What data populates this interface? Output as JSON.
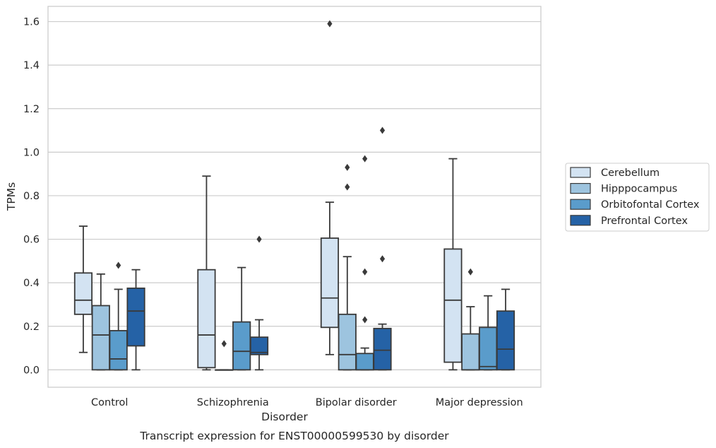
{
  "chart_data": {
    "type": "box",
    "caption": "Transcript expression for ENST00000599530 by disorder",
    "xlabel": "Disorder",
    "ylabel": "TPMs",
    "ylim": [
      -0.08,
      1.67
    ],
    "yticks": [
      "0.0",
      "0.2",
      "0.4",
      "0.6",
      "0.8",
      "1.0",
      "1.2",
      "1.4",
      "1.6"
    ],
    "grid": true,
    "legend_position": "right",
    "categories": [
      "Control",
      "Schizophrenia",
      "Bipolar disorder",
      "Major depression"
    ],
    "series": [
      {
        "name": "Cerebellum",
        "color": "#d3e3f2",
        "boxes": [
          {
            "whisker_low": 0.08,
            "q1": 0.255,
            "median": 0.32,
            "q3": 0.445,
            "whisker_high": 0.66,
            "outliers": []
          },
          {
            "whisker_low": 0.0,
            "q1": 0.01,
            "median": 0.16,
            "q3": 0.46,
            "whisker_high": 0.89,
            "outliers": []
          },
          {
            "whisker_low": 0.07,
            "q1": 0.195,
            "median": 0.33,
            "q3": 0.605,
            "whisker_high": 0.77,
            "outliers": [
              1.59
            ]
          },
          {
            "whisker_low": 0.0,
            "q1": 0.035,
            "median": 0.32,
            "q3": 0.555,
            "whisker_high": 0.97,
            "outliers": []
          }
        ]
      },
      {
        "name": "Hipppocampus",
        "color": "#9dc4df",
        "boxes": [
          {
            "whisker_low": 0.0,
            "q1": 0.0,
            "median": 0.16,
            "q3": 0.295,
            "whisker_high": 0.44,
            "outliers": []
          },
          {
            "whisker_low": 0.0,
            "q1": 0.0,
            "median": 0.0,
            "q3": 0.0,
            "whisker_high": 0.0,
            "outliers": [
              0.12
            ]
          },
          {
            "whisker_low": 0.0,
            "q1": 0.0,
            "median": 0.07,
            "q3": 0.255,
            "whisker_high": 0.52,
            "outliers": [
              0.93,
              0.84
            ]
          },
          {
            "whisker_low": 0.0,
            "q1": 0.0,
            "median": 0.0,
            "q3": 0.165,
            "whisker_high": 0.29,
            "outliers": [
              0.45
            ]
          }
        ]
      },
      {
        "name": "Orbitofontal Cortex",
        "color": "#5a9ccb",
        "boxes": [
          {
            "whisker_low": 0.0,
            "q1": 0.0,
            "median": 0.05,
            "q3": 0.18,
            "whisker_high": 0.37,
            "outliers": [
              0.48
            ]
          },
          {
            "whisker_low": 0.0,
            "q1": 0.0,
            "median": 0.085,
            "q3": 0.22,
            "whisker_high": 0.47,
            "outliers": []
          },
          {
            "whisker_low": 0.0,
            "q1": 0.0,
            "median": 0.0,
            "q3": 0.075,
            "whisker_high": 0.1,
            "outliers": [
              0.97,
              0.45,
              0.23
            ]
          },
          {
            "whisker_low": 0.0,
            "q1": 0.0,
            "median": 0.015,
            "q3": 0.195,
            "whisker_high": 0.34,
            "outliers": []
          }
        ]
      },
      {
        "name": "Prefrontal Cortex",
        "color": "#2562a6",
        "boxes": [
          {
            "whisker_low": 0.0,
            "q1": 0.11,
            "median": 0.27,
            "q3": 0.375,
            "whisker_high": 0.46,
            "outliers": []
          },
          {
            "whisker_low": 0.0,
            "q1": 0.07,
            "median": 0.08,
            "q3": 0.15,
            "whisker_high": 0.23,
            "outliers": [
              0.6
            ]
          },
          {
            "whisker_low": 0.0,
            "q1": 0.0,
            "median": 0.09,
            "q3": 0.19,
            "whisker_high": 0.21,
            "outliers": [
              1.1,
              0.51
            ]
          },
          {
            "whisker_low": 0.0,
            "q1": 0.0,
            "median": 0.095,
            "q3": 0.27,
            "whisker_high": 0.37,
            "outliers": []
          }
        ]
      }
    ]
  }
}
